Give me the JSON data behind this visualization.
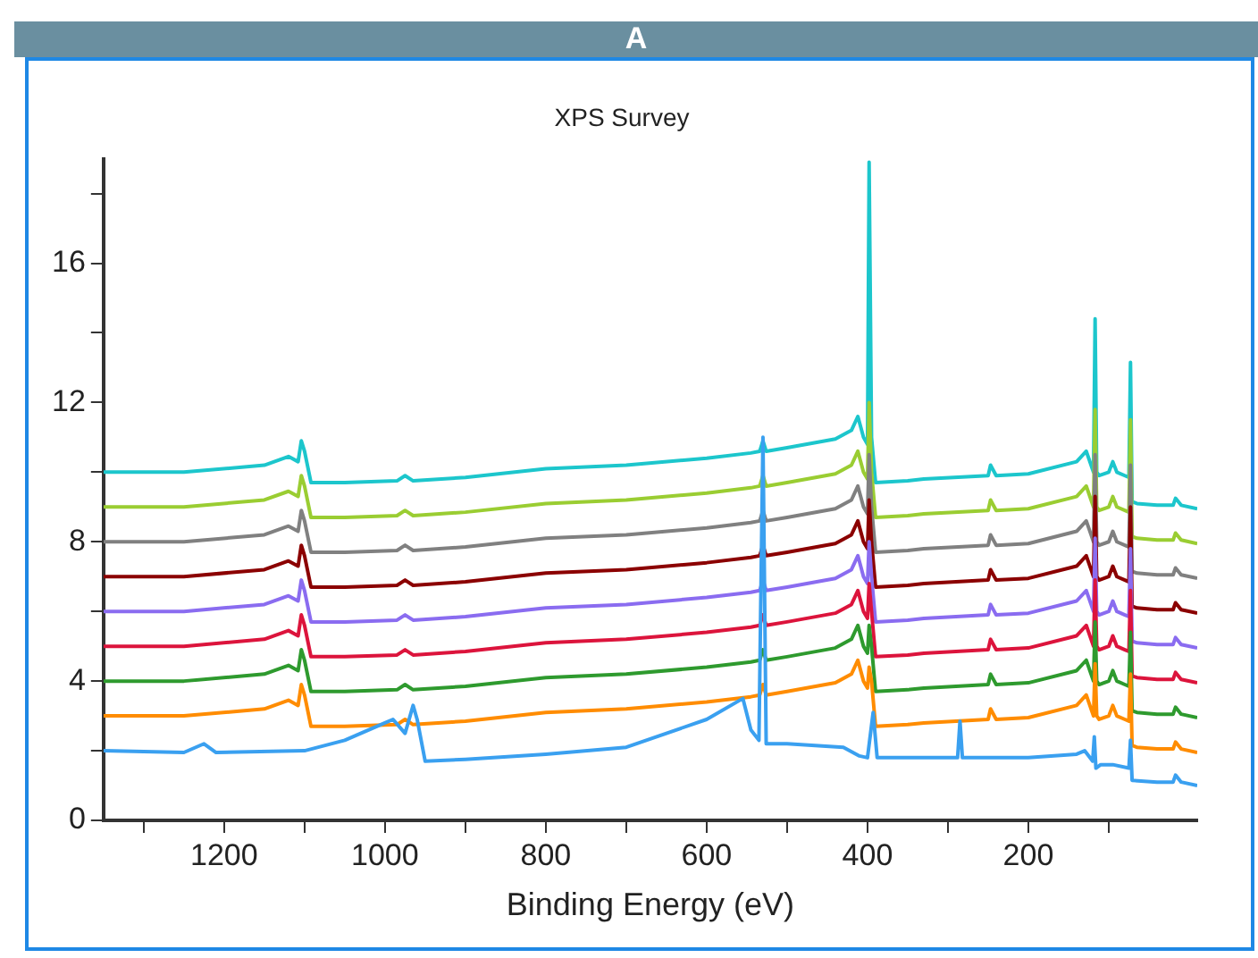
{
  "chart_data": {
    "type": "line",
    "title": "XPS Survey",
    "xlabel": "Binding Energy (eV)",
    "annotations": [
      "A"
    ],
    "marker": "none",
    "grid": false,
    "x": [
      1350,
      1250,
      1150,
      1120,
      1108,
      1104,
      1100,
      1092,
      1050,
      985,
      975,
      965,
      900,
      800,
      700,
      600,
      545,
      534,
      530,
      526,
      500,
      440,
      420,
      412,
      405,
      400,
      398,
      395,
      390,
      350,
      330,
      250,
      247,
      240,
      200,
      140,
      128,
      122,
      119,
      117,
      115,
      112,
      100,
      95,
      90,
      80,
      75,
      73,
      71,
      65,
      40,
      20,
      17,
      10,
      -10
    ],
    "xlim": [
      1350,
      -10
    ],
    "xticks": [
      {
        "value": 1300,
        "label": null
      },
      1200,
      {
        "value": 1100,
        "label": null
      },
      1000,
      {
        "value": 900,
        "label": null
      },
      800,
      {
        "value": 700,
        "label": null
      },
      600,
      {
        "value": 500,
        "label": null
      },
      400,
      {
        "value": 300,
        "label": null
      },
      200,
      {
        "value": 100,
        "label": null
      }
    ],
    "ylim": [
      0,
      19
    ],
    "yticks": [
      0,
      {
        "value": 2,
        "label": null
      },
      4,
      {
        "value": 6,
        "label": null
      },
      8,
      {
        "value": 10,
        "label": null
      },
      12,
      {
        "value": 14,
        "label": null
      },
      16,
      {
        "value": 18,
        "label": null
      }
    ],
    "series": [
      {
        "color": "#3aa0f0",
        "x": [
          1350,
          1250,
          1225,
          1210,
          1100,
          1050,
          1000,
          990,
          975,
          965,
          960,
          950,
          900,
          800,
          700,
          600,
          555,
          545,
          535,
          530,
          526,
          500,
          430,
          410,
          400,
          393,
          388,
          300,
          288,
          285,
          282,
          200,
          140,
          130,
          120,
          118,
          116,
          110,
          95,
          75,
          73,
          71,
          40,
          20,
          17,
          10,
          -10
        ],
        "values": [
          2,
          1.95,
          2.2,
          1.95,
          2,
          2.3,
          2.8,
          2.9,
          2.5,
          3.3,
          2.9,
          1.7,
          1.75,
          1.9,
          2.1,
          2.9,
          3.5,
          2.6,
          2.3,
          11,
          2.2,
          2.2,
          2.1,
          1.85,
          1.8,
          3.1,
          1.8,
          1.8,
          1.8,
          2.85,
          1.8,
          1.8,
          1.9,
          2,
          1.7,
          2.4,
          1.5,
          1.6,
          1.6,
          1.5,
          2.3,
          1.15,
          1.1,
          1.1,
          1.3,
          1.1,
          1
        ]
      },
      {
        "color": "#ff8c00",
        "values": [
          3,
          3,
          3.2,
          3.45,
          3.3,
          3.9,
          3.6,
          2.7,
          2.7,
          2.75,
          2.9,
          2.75,
          2.85,
          3.1,
          3.2,
          3.4,
          3.55,
          3.6,
          3.9,
          3.6,
          3.7,
          3.95,
          4.2,
          4.6,
          4,
          3.8,
          4.4,
          4,
          2.7,
          2.75,
          2.8,
          2.9,
          3.2,
          2.9,
          2.95,
          3.3,
          3.6,
          3.2,
          3,
          4.5,
          3,
          2.9,
          3,
          3.3,
          3,
          2.9,
          2.85,
          4.2,
          2.15,
          2.1,
          2.05,
          2.05,
          2.25,
          2.05,
          1.95
        ]
      },
      {
        "color": "#2e9a2e",
        "values": [
          4,
          4,
          4.2,
          4.45,
          4.3,
          4.9,
          4.6,
          3.7,
          3.7,
          3.75,
          3.9,
          3.75,
          3.85,
          4.1,
          4.2,
          4.4,
          4.55,
          4.6,
          4.9,
          4.6,
          4.7,
          4.95,
          5.2,
          5.6,
          5,
          4.8,
          5.6,
          5,
          3.7,
          3.75,
          3.8,
          3.9,
          4.2,
          3.9,
          3.95,
          4.3,
          4.6,
          4.2,
          4,
          5.7,
          4,
          3.9,
          4,
          4.3,
          4,
          3.9,
          3.85,
          5.4,
          3.15,
          3.1,
          3.05,
          3.05,
          3.25,
          3.05,
          2.95
        ]
      },
      {
        "color": "#dc143c",
        "values": [
          5,
          5,
          5.2,
          5.45,
          5.3,
          5.9,
          5.6,
          4.7,
          4.7,
          4.75,
          4.9,
          4.75,
          4.85,
          5.1,
          5.2,
          5.4,
          5.55,
          5.6,
          5.9,
          5.6,
          5.7,
          5.95,
          6.2,
          6.6,
          6,
          5.8,
          6.8,
          6,
          4.7,
          4.75,
          4.8,
          4.9,
          5.2,
          4.9,
          4.95,
          5.3,
          5.6,
          5.2,
          5,
          6.9,
          5,
          4.9,
          5,
          5.3,
          5,
          4.9,
          4.85,
          6.6,
          4.15,
          4.1,
          4.05,
          4.05,
          4.25,
          4.05,
          3.95
        ]
      },
      {
        "color": "#8a6cf0",
        "values": [
          6,
          6,
          6.2,
          6.45,
          6.3,
          6.9,
          6.6,
          5.7,
          5.7,
          5.75,
          5.9,
          5.75,
          5.85,
          6.1,
          6.2,
          6.4,
          6.55,
          6.6,
          6.9,
          6.6,
          6.7,
          6.95,
          7.2,
          7.6,
          7,
          6.8,
          8,
          7,
          5.7,
          5.75,
          5.8,
          5.9,
          6.2,
          5.9,
          5.95,
          6.3,
          6.6,
          6.2,
          6,
          8.1,
          6,
          5.9,
          6,
          6.3,
          6,
          5.9,
          5.85,
          7.8,
          5.15,
          5.1,
          5.05,
          5.05,
          5.25,
          5.05,
          4.95
        ]
      },
      {
        "color": "#8b0000",
        "values": [
          7,
          7,
          7.2,
          7.45,
          7.3,
          7.9,
          7.6,
          6.7,
          6.7,
          6.75,
          6.9,
          6.75,
          6.85,
          7.1,
          7.2,
          7.4,
          7.55,
          7.6,
          7.9,
          7.6,
          7.7,
          7.95,
          8.2,
          8.6,
          8,
          7.8,
          9.2,
          8,
          6.7,
          6.75,
          6.8,
          6.9,
          7.2,
          6.9,
          6.95,
          7.3,
          7.6,
          7.2,
          7,
          9.3,
          7,
          6.9,
          7,
          7.3,
          7,
          6.9,
          6.85,
          9,
          6.15,
          6.1,
          6.05,
          6.05,
          6.25,
          6.05,
          5.95
        ]
      },
      {
        "color": "#808080",
        "values": [
          8,
          8,
          8.2,
          8.45,
          8.3,
          8.9,
          8.6,
          7.7,
          7.7,
          7.75,
          7.9,
          7.75,
          7.85,
          8.1,
          8.2,
          8.4,
          8.55,
          8.6,
          8.9,
          8.6,
          8.7,
          8.95,
          9.2,
          9.6,
          9,
          8.8,
          10.5,
          9,
          7.7,
          7.75,
          7.8,
          7.9,
          8.2,
          7.9,
          7.95,
          8.3,
          8.6,
          8.2,
          8,
          10.5,
          8,
          7.9,
          8,
          8.3,
          8,
          7.9,
          7.85,
          10.2,
          7.15,
          7.1,
          7.05,
          7.05,
          7.25,
          7.05,
          6.95
        ]
      },
      {
        "color": "#9acd32",
        "values": [
          9,
          9,
          9.2,
          9.45,
          9.3,
          9.9,
          9.6,
          8.7,
          8.7,
          8.75,
          8.9,
          8.75,
          8.85,
          9.1,
          9.2,
          9.4,
          9.55,
          9.6,
          9.9,
          9.6,
          9.7,
          9.95,
          10.2,
          10.6,
          10,
          9.8,
          12,
          10,
          8.7,
          8.75,
          8.8,
          8.9,
          9.2,
          8.9,
          8.95,
          9.3,
          9.6,
          9.2,
          9,
          11.8,
          9,
          8.9,
          9,
          9.3,
          9,
          8.9,
          8.85,
          11.5,
          8.15,
          8.1,
          8.05,
          8.05,
          8.25,
          8.05,
          7.95
        ]
      },
      {
        "color": "#1cc6cc",
        "values": [
          10,
          10,
          10.2,
          10.45,
          10.3,
          10.9,
          10.6,
          9.7,
          9.7,
          9.75,
          9.9,
          9.75,
          9.85,
          10.1,
          10.2,
          10.4,
          10.55,
          10.6,
          10.9,
          10.6,
          10.7,
          10.95,
          11.2,
          11.6,
          11,
          10.8,
          18.9,
          11,
          9.7,
          9.75,
          9.8,
          9.9,
          10.2,
          9.9,
          9.95,
          10.3,
          10.6,
          10.2,
          10,
          14.4,
          10,
          9.9,
          10,
          10.3,
          10,
          9.9,
          9.85,
          13.15,
          9.15,
          9.1,
          9.05,
          9.05,
          9.25,
          9.05,
          8.95
        ]
      }
    ]
  }
}
